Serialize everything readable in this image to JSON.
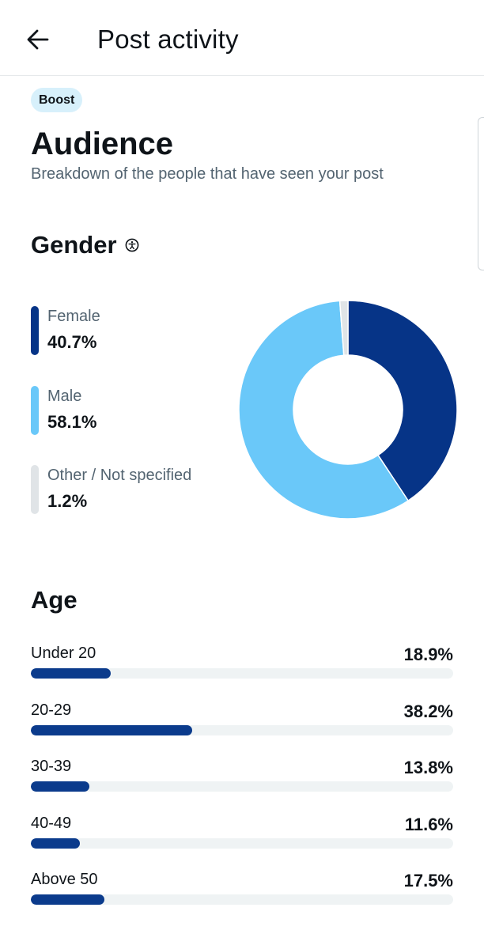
{
  "header": {
    "title": "Post activity",
    "back_icon": "arrow-left-icon"
  },
  "badge": {
    "label": "Boost"
  },
  "audience": {
    "title": "Audience",
    "subtitle": "Breakdown of the people that have seen your post"
  },
  "gender": {
    "title": "Gender",
    "info_icon": "info-circle-icon",
    "items": [
      {
        "label": "Female",
        "value": "40.7%",
        "percent": 40.7,
        "color": "#063487"
      },
      {
        "label": "Male",
        "value": "58.1%",
        "percent": 58.1,
        "color": "#6ac8f9"
      },
      {
        "label": "Other / Not specified",
        "value": "1.2%",
        "percent": 1.2,
        "color": "#e0e4e7"
      }
    ]
  },
  "age": {
    "title": "Age",
    "bar_color": "#0b3b8c",
    "track_color": "#eff3f4",
    "items": [
      {
        "label": "Under 20",
        "value": "18.9%",
        "percent": 18.9
      },
      {
        "label": "20-29",
        "value": "38.2%",
        "percent": 38.2
      },
      {
        "label": "30-39",
        "value": "13.8%",
        "percent": 13.8
      },
      {
        "label": "40-49",
        "value": "11.6%",
        "percent": 11.6
      },
      {
        "label": "Above 50",
        "value": "17.5%",
        "percent": 17.5
      }
    ]
  }
}
